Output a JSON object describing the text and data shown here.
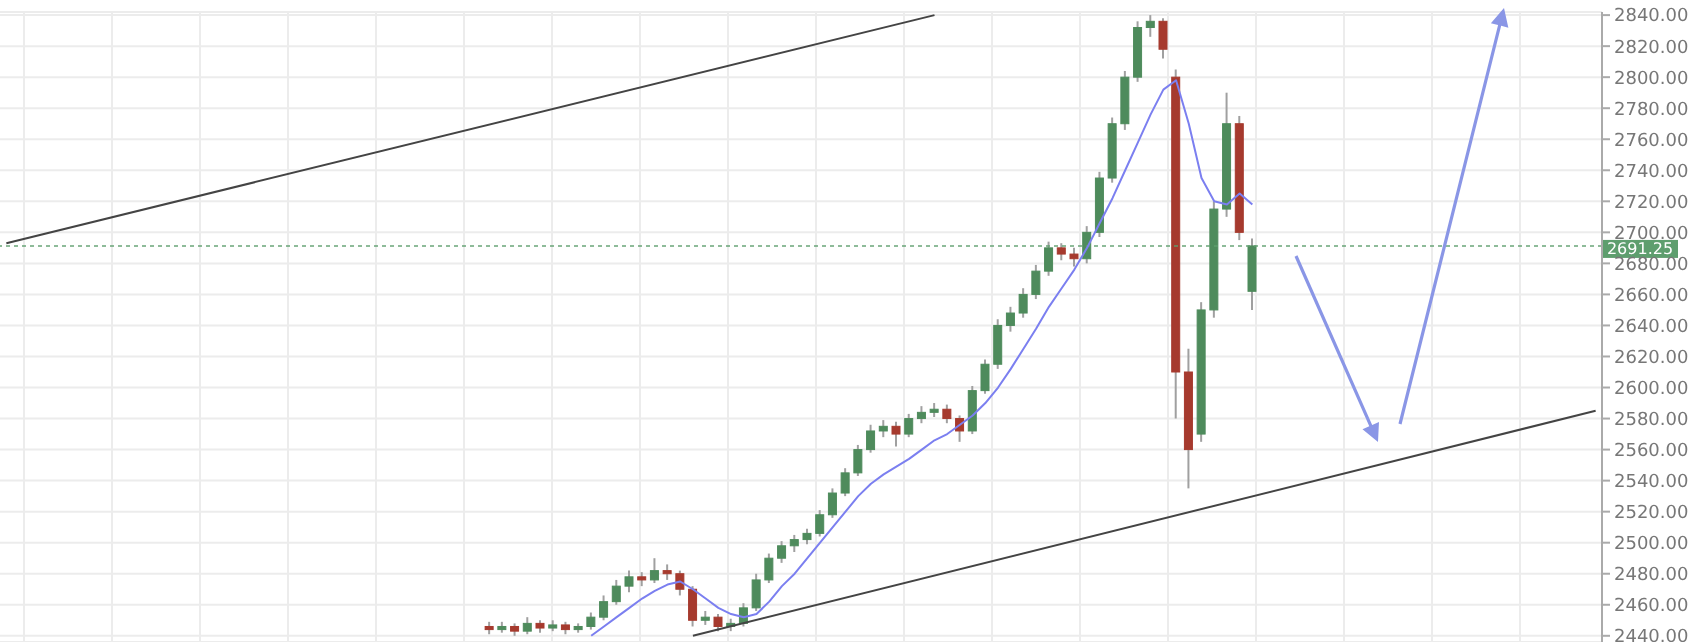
{
  "chart_data": {
    "type": "candlestick",
    "categories": [
      null,
      null,
      null,
      null,
      null,
      null,
      null,
      null,
      null,
      null,
      null,
      null,
      null,
      null,
      null,
      null,
      null,
      null,
      null,
      null,
      null,
      null,
      null,
      null,
      null,
      null,
      null,
      null,
      null,
      null,
      null,
      null,
      null,
      null,
      null,
      null,
      null,
      null,
      null,
      null,
      null,
      null,
      null,
      null,
      null,
      null,
      null,
      null,
      null,
      null,
      null,
      null,
      null,
      null,
      null,
      null,
      null,
      null,
      null,
      null,
      null,
      null,
      null,
      null,
      null,
      null,
      null,
      null,
      null,
      null,
      null,
      null,
      null,
      null,
      null,
      null,
      null,
      null,
      null,
      null,
      null,
      null,
      null,
      null,
      null,
      null,
      null,
      null,
      null,
      null,
      null,
      null,
      null,
      null,
      null,
      null,
      null,
      null,
      null,
      null,
      null,
      null,
      null,
      null,
      null,
      null,
      null,
      null,
      null,
      null,
      null,
      null,
      null,
      null,
      null,
      null,
      null,
      null,
      null,
      null,
      null,
      null,
      null,
      null,
      null,
      null
    ],
    "ohlc": [
      null,
      null,
      null,
      null,
      null,
      null,
      null,
      null,
      null,
      null,
      null,
      null,
      null,
      null,
      null,
      null,
      null,
      null,
      null,
      null,
      null,
      null,
      null,
      null,
      null,
      null,
      null,
      null,
      null,
      null,
      null,
      null,
      null,
      null,
      null,
      null,
      null,
      null,
      [
        2446,
        2449,
        2441,
        2444
      ],
      [
        2444,
        2449,
        2442,
        2446
      ],
      [
        2446,
        2448,
        2440,
        2443
      ],
      [
        2443,
        2452,
        2441,
        2448
      ],
      [
        2448,
        2450,
        2442,
        2445
      ],
      [
        2445,
        2450,
        2443,
        2447
      ],
      [
        2447,
        2449,
        2441,
        2444
      ],
      [
        2444,
        2448,
        2442,
        2446
      ],
      [
        2446,
        2455,
        2444,
        2452
      ],
      [
        2452,
        2466,
        2450,
        2462
      ],
      [
        2462,
        2476,
        2460,
        2472
      ],
      [
        2472,
        2482,
        2468,
        2478
      ],
      [
        2478,
        2481,
        2472,
        2476
      ],
      [
        2476,
        2490,
        2474,
        2482
      ],
      [
        2482,
        2486,
        2476,
        2480
      ],
      [
        2480,
        2482,
        2466,
        2470
      ],
      [
        2470,
        2472,
        2446,
        2450
      ],
      [
        2450,
        2456,
        2447,
        2452
      ],
      [
        2452,
        2454,
        2443,
        2446
      ],
      [
        2446,
        2451,
        2443,
        2448
      ],
      [
        2448,
        2461,
        2446,
        2458
      ],
      [
        2458,
        2480,
        2456,
        2476
      ],
      [
        2476,
        2493,
        2474,
        2490
      ],
      [
        2490,
        2501,
        2487,
        2498
      ],
      [
        2498,
        2505,
        2494,
        2502
      ],
      [
        2502,
        2509,
        2499,
        2506
      ],
      [
        2506,
        2521,
        2504,
        2518
      ],
      [
        2518,
        2535,
        2516,
        2532
      ],
      [
        2532,
        2548,
        2530,
        2545
      ],
      [
        2545,
        2563,
        2543,
        2560
      ],
      [
        2560,
        2576,
        2558,
        2572
      ],
      [
        2572,
        2579,
        2568,
        2575
      ],
      [
        2575,
        2578,
        2562,
        2570
      ],
      [
        2570,
        2583,
        2568,
        2580
      ],
      [
        2580,
        2588,
        2577,
        2584
      ],
      [
        2584,
        2590,
        2581,
        2586
      ],
      [
        2586,
        2589,
        2577,
        2580
      ],
      [
        2580,
        2582,
        2565,
        2572
      ],
      [
        2572,
        2601,
        2570,
        2598
      ],
      [
        2598,
        2618,
        2596,
        2615
      ],
      [
        2615,
        2644,
        2612,
        2640
      ],
      [
        2640,
        2652,
        2636,
        2648
      ],
      [
        2648,
        2664,
        2645,
        2660
      ],
      [
        2660,
        2679,
        2657,
        2675
      ],
      [
        2675,
        2694,
        2672,
        2690
      ],
      [
        2690,
        2693,
        2682,
        2686
      ],
      [
        2686,
        2690,
        2678,
        2683
      ],
      [
        2683,
        2704,
        2680,
        2700
      ],
      [
        2700,
        2739,
        2697,
        2735
      ],
      [
        2735,
        2774,
        2732,
        2770
      ],
      [
        2770,
        2804,
        2766,
        2800
      ],
      [
        2800,
        2836,
        2797,
        2832
      ],
      [
        2832,
        2840,
        2826,
        2836
      ],
      [
        2836,
        2838,
        2812,
        2818
      ],
      [
        2800,
        2805,
        2580,
        2610
      ],
      [
        2610,
        2625,
        2535,
        2560
      ],
      [
        2570,
        2655,
        2565,
        2650
      ],
      [
        2650,
        2720,
        2645,
        2715
      ],
      [
        2715,
        2790,
        2710,
        2770
      ],
      [
        2770,
        2775,
        2695,
        2700
      ],
      [
        2662,
        2696,
        2650,
        2691.25
      ],
      null,
      null,
      null,
      null,
      null,
      null,
      null,
      null,
      null,
      null,
      null,
      null,
      null,
      null,
      null,
      null,
      null,
      null,
      null,
      null,
      null,
      null,
      null,
      null,
      null,
      null,
      null
    ],
    "colors": [
      null,
      null,
      null,
      null,
      null,
      null,
      null,
      null,
      null,
      null,
      null,
      null,
      null,
      null,
      null,
      null,
      null,
      null,
      null,
      null,
      null,
      null,
      null,
      null,
      null,
      null,
      null,
      null,
      null,
      null,
      null,
      null,
      null,
      null,
      null,
      null,
      null,
      null,
      "#a63a2e",
      "#4e8b5c",
      "#a63a2e",
      "#4e8b5c",
      "#a63a2e",
      "#4e8b5c",
      "#a63a2e",
      "#4e8b5c",
      "#4e8b5c",
      "#4e8b5c",
      "#4e8b5c",
      "#4e8b5c",
      "#a63a2e",
      "#4e8b5c",
      "#a63a2e",
      "#a63a2e",
      "#a63a2e",
      "#4e8b5c",
      "#a63a2e",
      "#4e8b5c",
      "#4e8b5c",
      "#4e8b5c",
      "#4e8b5c",
      "#4e8b5c",
      "#4e8b5c",
      "#4e8b5c",
      "#4e8b5c",
      "#4e8b5c",
      "#4e8b5c",
      "#4e8b5c",
      "#4e8b5c",
      "#4e8b5c",
      "#a63a2e",
      "#4e8b5c",
      "#4e8b5c",
      "#4e8b5c",
      "#a63a2e",
      "#a63a2e",
      "#4e8b5c",
      "#4e8b5c",
      "#4e8b5c",
      "#4e8b5c",
      "#4e8b5c",
      "#4e8b5c",
      "#4e8b5c",
      "#a63a2e",
      "#a63a2e",
      "#4e8b5c",
      "#4e8b5c",
      "#4e8b5c",
      "#4e8b5c",
      "#4e8b5c",
      "#4e8b5c",
      "#a63a2e",
      "#a63a2e",
      "#a63a2e",
      "#4e8b5c",
      "#4e8b5c",
      "#4e8b5c",
      "#a63a2e",
      "#4e8b5c",
      null,
      null,
      null,
      null,
      null,
      null,
      null,
      null,
      null,
      null,
      null,
      null,
      null,
      null,
      null,
      null,
      null,
      null,
      null,
      null,
      null,
      null,
      null,
      null,
      null,
      null,
      null
    ],
    "series": [
      {
        "type": "line",
        "color": "#7b7ff0",
        "values": [
          null,
          null,
          null,
          null,
          null,
          null,
          null,
          null,
          null,
          null,
          null,
          null,
          null,
          null,
          null,
          null,
          null,
          null,
          null,
          null,
          null,
          null,
          null,
          null,
          null,
          null,
          null,
          null,
          null,
          null,
          null,
          null,
          null,
          null,
          null,
          null,
          null,
          null,
          null,
          null,
          null,
          null,
          null,
          null,
          null,
          null,
          2440,
          2446,
          2452,
          2458,
          2464,
          2469,
          2473,
          2475,
          2470,
          2464,
          2458,
          2454,
          2452,
          2454,
          2462,
          2472,
          2480,
          2490,
          2500,
          2510,
          2520,
          2530,
          2538,
          2544,
          2549,
          2554,
          2560,
          2566,
          2570,
          2576,
          2582,
          2590,
          2600,
          2612,
          2625,
          2638,
          2652,
          2664,
          2676,
          2690,
          2706,
          2722,
          2740,
          2758,
          2776,
          2792,
          2798,
          2770,
          2735,
          2720,
          2718,
          2725,
          2718,
          null,
          null,
          null,
          null,
          null,
          null,
          null,
          null,
          null,
          null,
          null,
          null,
          null,
          null,
          null,
          null,
          null,
          null,
          null,
          null,
          null,
          null,
          null,
          null,
          null,
          null,
          null
        ]
      },
      {
        "type": "line",
        "color": "#444444",
        "values": [
          2693,
          null,
          null,
          null,
          null,
          null,
          null,
          null,
          null,
          null,
          null,
          null,
          null,
          null,
          null,
          null,
          null,
          null,
          null,
          null,
          null,
          null,
          null,
          null,
          null,
          null,
          null,
          null,
          null,
          null,
          null,
          null,
          null,
          null,
          null,
          null,
          null,
          null,
          null,
          null,
          null,
          null,
          null,
          null,
          null,
          null,
          null,
          null,
          null,
          null,
          null,
          null,
          null,
          null,
          null,
          null,
          null,
          null,
          null,
          null,
          null,
          null,
          null,
          null,
          null,
          null,
          null,
          null,
          null,
          null,
          null,
          null,
          null,
          2840,
          null,
          null,
          null,
          null,
          null,
          null,
          null,
          null,
          null,
          null,
          null,
          null,
          null,
          null,
          null,
          null,
          null,
          null,
          null,
          null,
          null,
          null,
          null,
          null,
          null,
          null,
          null,
          null,
          null,
          null,
          null,
          null,
          null,
          null,
          null,
          null,
          null,
          null,
          null,
          null,
          null,
          null,
          null,
          null,
          null,
          null,
          null,
          null,
          null,
          null,
          null,
          null
        ]
      },
      {
        "type": "line",
        "color": "#444444",
        "values": [
          null,
          null,
          null,
          null,
          null,
          null,
          null,
          null,
          null,
          null,
          null,
          null,
          null,
          null,
          null,
          null,
          null,
          null,
          null,
          null,
          null,
          null,
          null,
          null,
          null,
          null,
          null,
          null,
          null,
          null,
          null,
          null,
          null,
          null,
          null,
          null,
          null,
          null,
          null,
          null,
          null,
          null,
          null,
          null,
          null,
          null,
          null,
          null,
          null,
          null,
          null,
          null,
          null,
          null,
          2440,
          null,
          null,
          null,
          null,
          null,
          null,
          null,
          null,
          null,
          null,
          null,
          null,
          null,
          null,
          null,
          null,
          null,
          null,
          null,
          null,
          null,
          null,
          null,
          null,
          null,
          null,
          null,
          null,
          null,
          null,
          null,
          null,
          null,
          null,
          null,
          null,
          null,
          null,
          null,
          null,
          null,
          null,
          null,
          null,
          null,
          null,
          null,
          null,
          null,
          null,
          null,
          null,
          null,
          null,
          null,
          null,
          null,
          null,
          null,
          null,
          null,
          null,
          null,
          null,
          null,
          null,
          null,
          null,
          null,
          null,
          2585
        ]
      }
    ],
    "ylim": [
      2436,
      2842
    ],
    "yticks": [
      {
        "value": 2440,
        "label": "2440.00"
      },
      {
        "value": 2460,
        "label": "2460.00"
      },
      {
        "value": 2480,
        "label": "2480.00"
      },
      {
        "value": 2500,
        "label": "2500.00"
      },
      {
        "value": 2520,
        "label": "2520.00"
      },
      {
        "value": 2540,
        "label": "2540.00"
      },
      {
        "value": 2560,
        "label": "2560.00"
      },
      {
        "value": 2580,
        "label": "2580.00"
      },
      {
        "value": 2600,
        "label": "2600.00"
      },
      {
        "value": 2620,
        "label": "2620.00"
      },
      {
        "value": 2640,
        "label": "2640.00"
      },
      {
        "value": 2660,
        "label": "2660.00"
      },
      {
        "value": 2680,
        "label": "2680.00"
      },
      {
        "value": 2700,
        "label": "2700.00"
      },
      {
        "value": 2720,
        "label": "2720.00"
      },
      {
        "value": 2740,
        "label": "2740.00"
      },
      {
        "value": 2760,
        "label": "2760.00"
      },
      {
        "value": 2780,
        "label": "2780.00"
      },
      {
        "value": 2800,
        "label": "2800.00"
      },
      {
        "value": 2820,
        "label": "2820.00"
      },
      {
        "value": 2840,
        "label": "2840.00"
      }
    ],
    "ref_lines": [
      {
        "axis": "y",
        "value": 2691.25,
        "label": "2691.25",
        "color": "#5e9e6e",
        "line_style": "dotted"
      }
    ],
    "grid": true,
    "tick_labels": "y"
  }
}
